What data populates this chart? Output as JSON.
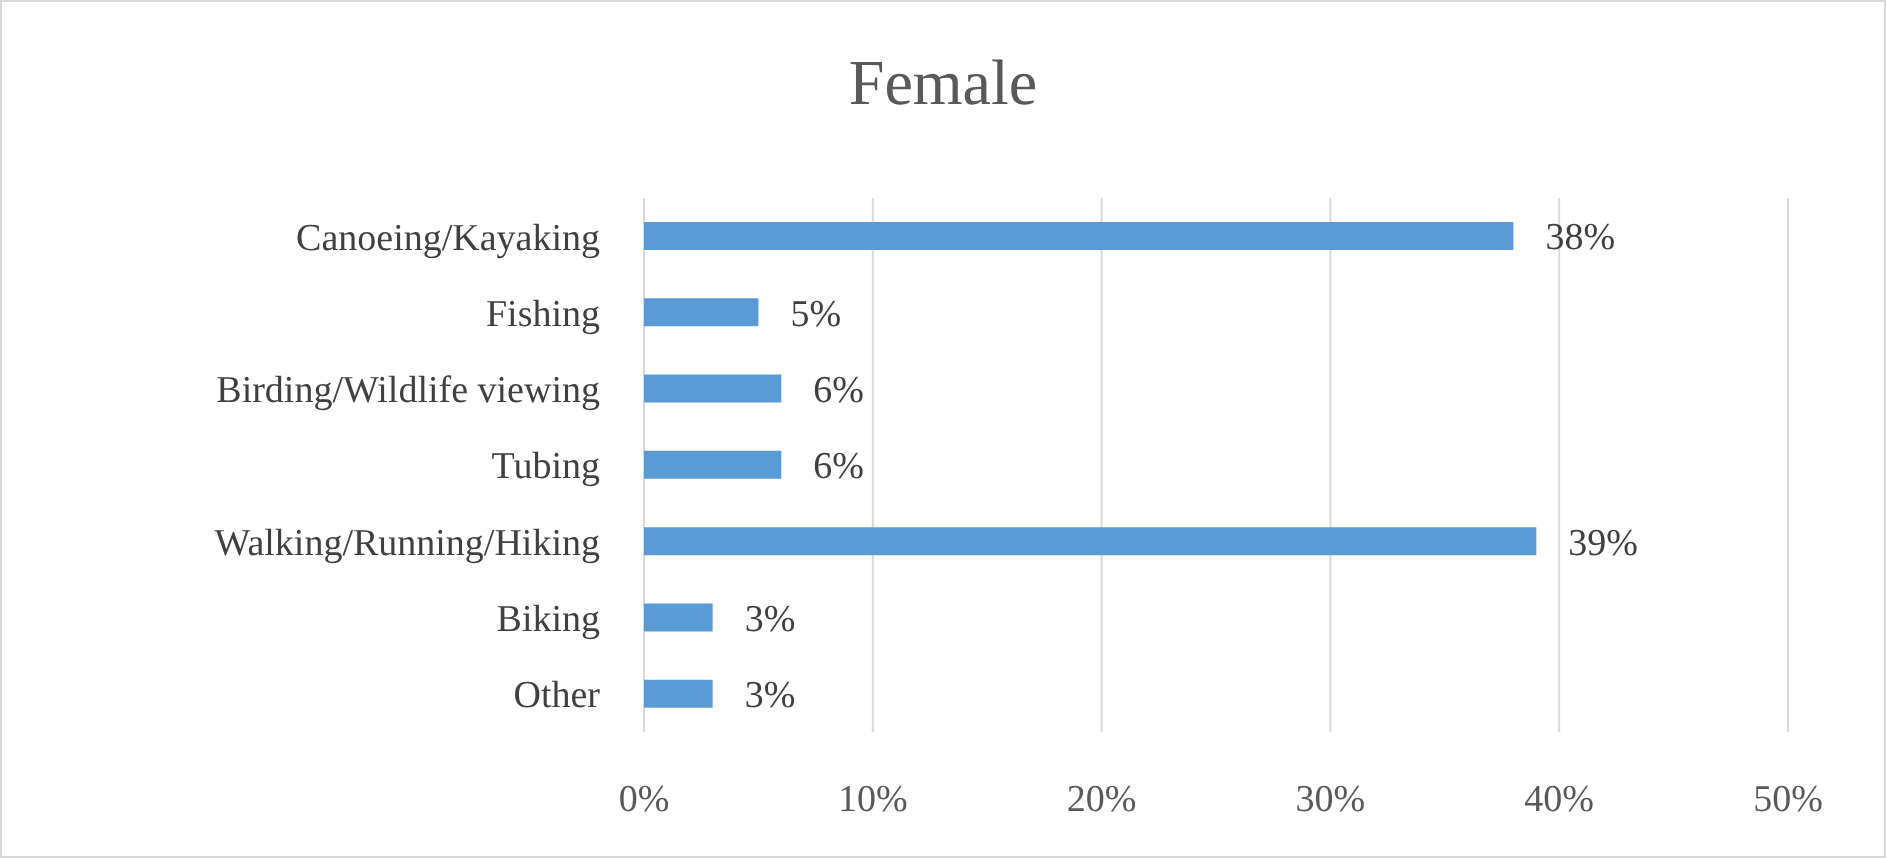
{
  "chart_data": {
    "type": "bar",
    "orientation": "horizontal",
    "title": "Female",
    "categories": [
      "Canoeing/Kayaking",
      "Fishing",
      "Birding/Wildlife viewing",
      "Tubing",
      "Walking/Running/Hiking",
      "Biking",
      "Other"
    ],
    "values": [
      38,
      5,
      6,
      6,
      39,
      3,
      3
    ],
    "value_labels": [
      "38%",
      "5%",
      "6%",
      "6%",
      "39%",
      "3%",
      "3%"
    ],
    "color": "#5b9bd5",
    "xlim": [
      0,
      50
    ],
    "xticks": [
      {
        "value": 0,
        "label": "0%"
      },
      {
        "value": 10,
        "label": "10%"
      },
      {
        "value": 20,
        "label": "20%"
      },
      {
        "value": 30,
        "label": "30%"
      },
      {
        "value": 40,
        "label": "40%"
      },
      {
        "value": 50,
        "label": "50%"
      }
    ],
    "grid": "x",
    "legend": false
  }
}
